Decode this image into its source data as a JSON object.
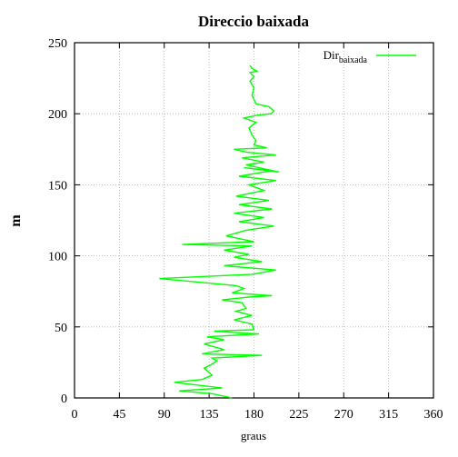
{
  "chart_data": {
    "type": "line",
    "title": "Direccio baixada",
    "xlabel": "graus",
    "ylabel": "m",
    "xlim": [
      0,
      360
    ],
    "ylim": [
      0,
      250
    ],
    "x_ticks": [
      0,
      45,
      90,
      135,
      180,
      225,
      270,
      315,
      360
    ],
    "y_ticks": [
      0,
      50,
      100,
      150,
      200,
      250
    ],
    "grid": true,
    "legend": {
      "position": "top-right",
      "label_base": "Dir",
      "label_subscript": "baixada"
    },
    "series": [
      {
        "name": "Dir baixada",
        "color": "#00ff00",
        "points": [
          [
            158,
            0
          ],
          [
            138,
            3
          ],
          [
            105,
            5
          ],
          [
            148,
            7
          ],
          [
            100,
            11
          ],
          [
            128,
            13
          ],
          [
            138,
            16
          ],
          [
            130,
            21
          ],
          [
            136,
            23
          ],
          [
            143,
            26
          ],
          [
            138,
            28
          ],
          [
            188,
            30
          ],
          [
            128,
            31
          ],
          [
            150,
            34
          ],
          [
            130,
            38
          ],
          [
            150,
            41
          ],
          [
            133,
            43
          ],
          [
            185,
            45
          ],
          [
            140,
            47
          ],
          [
            180,
            48
          ],
          [
            178,
            52
          ],
          [
            160,
            55
          ],
          [
            178,
            58
          ],
          [
            162,
            61
          ],
          [
            172,
            63
          ],
          [
            168,
            67
          ],
          [
            148,
            69
          ],
          [
            175,
            71
          ],
          [
            198,
            72
          ],
          [
            158,
            74
          ],
          [
            170,
            77
          ],
          [
            162,
            79
          ],
          [
            85,
            84
          ],
          [
            178,
            87
          ],
          [
            202,
            90
          ],
          [
            150,
            93
          ],
          [
            188,
            96
          ],
          [
            160,
            99
          ],
          [
            175,
            101
          ],
          [
            150,
            104
          ],
          [
            178,
            107
          ],
          [
            108,
            108
          ],
          [
            180,
            110
          ],
          [
            152,
            114
          ],
          [
            172,
            118
          ],
          [
            200,
            121
          ],
          [
            165,
            124
          ],
          [
            190,
            127
          ],
          [
            160,
            130
          ],
          [
            198,
            133
          ],
          [
            165,
            136
          ],
          [
            195,
            139
          ],
          [
            162,
            142
          ],
          [
            190,
            146
          ],
          [
            175,
            150
          ],
          [
            202,
            153
          ],
          [
            165,
            156
          ],
          [
            198,
            160
          ],
          [
            170,
            162
          ],
          [
            205,
            159
          ],
          [
            172,
            164
          ],
          [
            190,
            166
          ],
          [
            168,
            169
          ],
          [
            202,
            171
          ],
          [
            172,
            173
          ],
          [
            160,
            175
          ],
          [
            193,
            176
          ],
          [
            180,
            178
          ],
          [
            182,
            181
          ],
          [
            178,
            185
          ],
          [
            175,
            190
          ],
          [
            182,
            194
          ],
          [
            170,
            197
          ],
          [
            183,
            199
          ],
          [
            197,
            200
          ],
          [
            200,
            202
          ],
          [
            195,
            205
          ],
          [
            182,
            207
          ],
          [
            178,
            213
          ],
          [
            180,
            218
          ],
          [
            176,
            223
          ],
          [
            180,
            226
          ],
          [
            176,
            229
          ],
          [
            183,
            230
          ],
          [
            178,
            232
          ],
          [
            176,
            234
          ]
        ]
      }
    ]
  }
}
